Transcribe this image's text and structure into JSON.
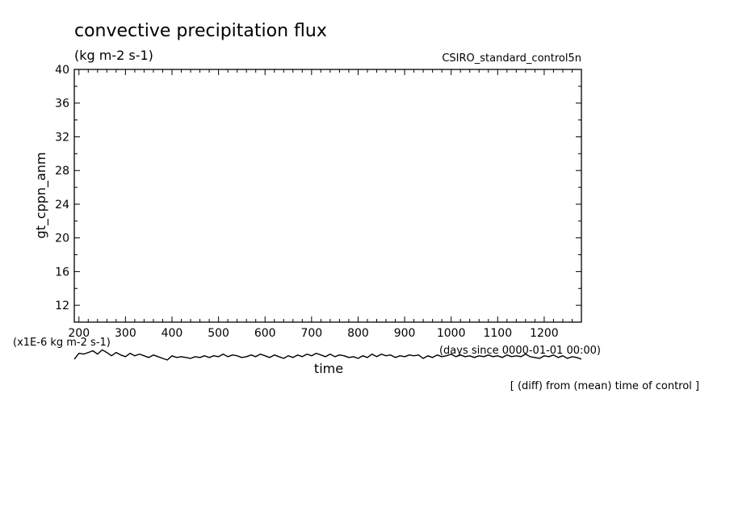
{
  "chart_data": {
    "type": "line",
    "title": "convective precipitation flux",
    "units": "(kg m-2 s-1)",
    "dataset": "CSIRO_standard_control5n",
    "xlabel": "time",
    "xunits": "(days since 0000-01-01 00:00)",
    "ylabel": "gt_cppn_anm",
    "yunits": "(x1E-6 kg m-2 s-1)",
    "annotation": "[ (diff) from (mean) time of control ]",
    "xlim": [
      190,
      1280
    ],
    "ylim": [
      10,
      40
    ],
    "xticks": [
      200,
      300,
      400,
      500,
      600,
      700,
      800,
      900,
      1000,
      1100,
      1200
    ],
    "yticks": [
      12,
      16,
      20,
      24,
      28,
      32,
      36,
      40
    ],
    "grid": false,
    "series": [
      {
        "x": [
          190,
          200,
          210,
          220,
          230,
          240,
          250,
          260,
          270,
          280,
          290,
          300,
          310,
          320,
          330,
          340,
          350,
          360,
          370,
          380,
          390,
          400,
          410,
          420,
          430,
          440,
          450,
          460,
          470,
          480,
          490,
          500,
          510,
          520,
          530,
          540,
          550,
          560,
          570,
          580,
          590,
          600,
          610,
          620,
          630,
          640,
          650,
          660,
          670,
          680,
          690,
          700,
          710,
          720,
          730,
          740,
          750,
          760,
          770,
          780,
          790,
          800,
          810,
          820,
          830,
          840,
          850,
          860,
          870,
          880,
          890,
          900,
          910,
          920,
          930,
          940,
          950,
          960,
          970,
          980,
          990,
          1000,
          1010,
          1020,
          1030,
          1040,
          1050,
          1060,
          1070,
          1080,
          1090,
          1100,
          1110,
          1120,
          1130,
          1140,
          1150,
          1160,
          1170,
          1180,
          1190,
          1200,
          1210,
          1220,
          1230,
          1240,
          1250,
          1260,
          1270,
          1280
        ],
        "y": [
          5.6,
          6.3,
          6.2,
          6.4,
          6.6,
          6.2,
          6.7,
          6.4,
          6.0,
          6.4,
          6.1,
          5.9,
          6.3,
          6.0,
          6.2,
          6.0,
          5.8,
          6.1,
          5.9,
          5.7,
          5.5,
          6.0,
          5.8,
          5.9,
          5.8,
          5.7,
          5.9,
          5.8,
          6.0,
          5.8,
          6.0,
          5.9,
          6.2,
          5.9,
          6.1,
          6.0,
          5.8,
          5.9,
          6.1,
          5.9,
          6.2,
          6.0,
          5.8,
          6.1,
          5.9,
          5.7,
          6.0,
          5.8,
          6.1,
          5.9,
          6.2,
          6.0,
          6.3,
          6.1,
          5.9,
          6.2,
          5.9,
          6.1,
          6.0,
          5.8,
          5.9,
          5.7,
          6.0,
          5.8,
          6.2,
          5.9,
          6.2,
          6.0,
          6.1,
          5.8,
          6.0,
          5.9,
          6.1,
          6.0,
          6.1,
          5.7,
          6.0,
          5.8,
          6.1,
          5.9,
          6.0,
          6.2,
          5.9,
          6.1,
          5.9,
          6.0,
          5.8,
          6.0,
          5.9,
          6.1,
          5.9,
          6.0,
          5.8,
          6.1,
          5.9,
          6.0,
          5.9,
          6.2,
          5.9,
          5.8,
          5.7,
          6.0,
          5.9,
          6.1,
          5.8,
          6.0,
          5.7,
          5.9,
          5.8,
          5.6
        ]
      }
    ]
  }
}
